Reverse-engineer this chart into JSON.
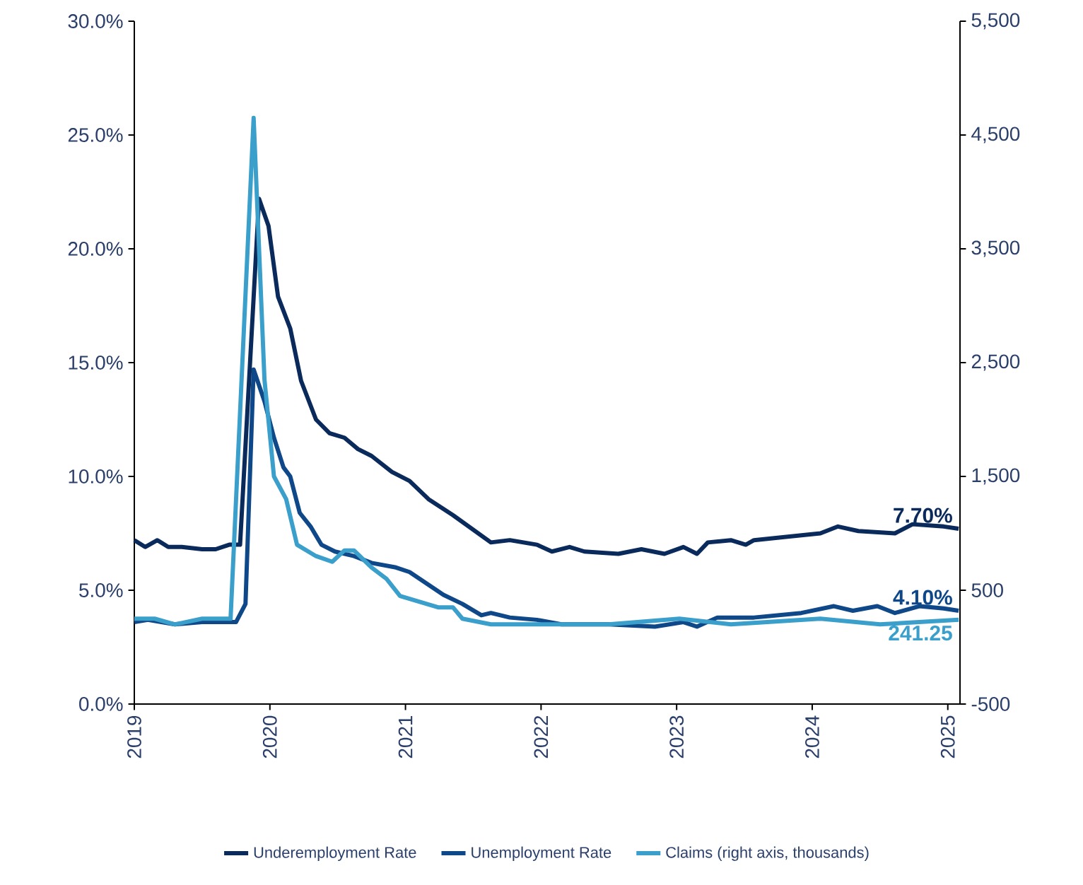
{
  "chart_data": {
    "type": "line",
    "xlim": [
      2019,
      2025.09
    ],
    "xticks": [
      2019,
      2020,
      2021,
      2022,
      2023,
      2024,
      2025
    ],
    "ylim": [
      0,
      30
    ],
    "yticks": [
      {
        "value": 0,
        "label": "0.0%"
      },
      {
        "value": 5,
        "label": "5.0%"
      },
      {
        "value": 10,
        "label": "10.0%"
      },
      {
        "value": 15,
        "label": "15.0%"
      },
      {
        "value": 20,
        "label": "20.0%"
      },
      {
        "value": 25,
        "label": "25.0%"
      },
      {
        "value": 30,
        "label": "30.0%"
      }
    ],
    "y2lim": [
      -500,
      5500
    ],
    "y2ticks": [
      {
        "value": -500,
        "label": "-500"
      },
      {
        "value": 500,
        "label": "500"
      },
      {
        "value": 1500,
        "label": "1,500"
      },
      {
        "value": 2500,
        "label": "2,500"
      },
      {
        "value": 3500,
        "label": "3,500"
      },
      {
        "value": 4500,
        "label": "4,500"
      },
      {
        "value": 5500,
        "label": "5,500"
      }
    ],
    "legend": "bottom",
    "line_style": "solid",
    "series": [
      {
        "name": "Underemployment Rate",
        "color": "#0b2a5c",
        "x": [
          2019.0,
          2019.08,
          2019.17,
          2019.25,
          2019.35,
          2019.5,
          2019.6,
          2019.7,
          2019.78,
          2019.92,
          2019.99,
          2020.06,
          2020.15,
          2020.23,
          2020.34,
          2020.44,
          2020.55,
          2020.65,
          2020.75,
          2020.9,
          2021.03,
          2021.17,
          2021.35,
          2021.63,
          2021.77,
          2021.97,
          2022.08,
          2022.21,
          2022.32,
          2022.57,
          2022.74,
          2022.91,
          2023.05,
          2023.15,
          2023.23,
          2023.4,
          2023.51,
          2023.57,
          2024.06,
          2024.19,
          2024.34,
          2024.61,
          2024.74,
          2024.97,
          2025.08
        ],
        "values": [
          7.2,
          6.9,
          7.2,
          6.9,
          6.9,
          6.8,
          6.8,
          7.0,
          7.0,
          22.2,
          21.0,
          17.9,
          16.5,
          14.2,
          12.5,
          11.9,
          11.7,
          11.2,
          10.9,
          10.2,
          9.8,
          9.0,
          8.3,
          7.1,
          7.2,
          7.0,
          6.7,
          6.9,
          6.7,
          6.6,
          6.8,
          6.6,
          6.9,
          6.6,
          7.1,
          7.2,
          7.0,
          7.2,
          7.5,
          7.8,
          7.6,
          7.5,
          7.9,
          7.8,
          7.7
        ],
        "value_labels": [
          null,
          null,
          null,
          null,
          null,
          null,
          null,
          null,
          null,
          null,
          null,
          null,
          null,
          null,
          null,
          null,
          null,
          null,
          null,
          null,
          null,
          null,
          null,
          null,
          null,
          null,
          null,
          null,
          null,
          null,
          null,
          null,
          null,
          null,
          null,
          null,
          null,
          null,
          null,
          null,
          null,
          null,
          null,
          null,
          "7.70%"
        ]
      },
      {
        "name": "Unemployment Rate",
        "color": "#0f4888",
        "x": [
          2019.0,
          2019.1,
          2019.3,
          2019.5,
          2019.65,
          2019.75,
          2019.82,
          2019.88,
          2019.96,
          2020.03,
          2020.1,
          2020.15,
          2020.22,
          2020.3,
          2020.38,
          2020.48,
          2020.62,
          2020.75,
          2020.93,
          2021.03,
          2021.28,
          2021.42,
          2021.56,
          2021.63,
          2021.77,
          2021.97,
          2022.15,
          2022.5,
          2022.84,
          2023.05,
          2023.15,
          2023.3,
          2023.57,
          2023.92,
          2024.16,
          2024.3,
          2024.48,
          2024.61,
          2024.79,
          2024.97,
          2025.08
        ],
        "values": [
          3.6,
          3.7,
          3.5,
          3.6,
          3.6,
          3.6,
          4.4,
          14.7,
          13.3,
          11.7,
          10.4,
          10.0,
          8.4,
          7.8,
          7.0,
          6.7,
          6.5,
          6.2,
          6.0,
          5.8,
          4.8,
          4.4,
          3.9,
          4.0,
          3.8,
          3.7,
          3.5,
          3.5,
          3.4,
          3.6,
          3.4,
          3.8,
          3.8,
          4.0,
          4.3,
          4.1,
          4.3,
          4.0,
          4.3,
          4.2,
          4.1
        ],
        "value_labels": [
          null,
          null,
          null,
          null,
          null,
          null,
          null,
          null,
          null,
          null,
          null,
          null,
          null,
          null,
          null,
          null,
          null,
          null,
          null,
          null,
          null,
          null,
          null,
          null,
          null,
          null,
          null,
          null,
          null,
          null,
          null,
          null,
          null,
          null,
          null,
          null,
          null,
          null,
          null,
          null,
          "4.10%"
        ]
      },
      {
        "name": "Claims (right axis, thousands)",
        "color": "#3a9fcb",
        "axis": "y2",
        "x": [
          2019.0,
          2019.15,
          2019.3,
          2019.5,
          2019.62,
          2019.71,
          2019.88,
          2019.96,
          2020.03,
          2020.12,
          2020.2,
          2020.34,
          2020.46,
          2020.55,
          2020.62,
          2020.75,
          2020.86,
          2020.96,
          2021.1,
          2021.24,
          2021.35,
          2021.42,
          2021.63,
          2021.97,
          2022.5,
          2023.02,
          2023.4,
          2024.06,
          2024.5,
          2025.08
        ],
        "values": [
          250,
          250,
          200,
          250,
          250,
          250,
          4650,
          2350,
          1500,
          1300,
          900,
          800,
          750,
          850,
          850,
          700,
          600,
          450,
          400,
          350,
          350,
          250,
          200,
          200,
          200,
          250,
          200,
          250,
          200,
          241.25
        ],
        "value_labels": [
          null,
          null,
          null,
          null,
          null,
          null,
          null,
          null,
          null,
          null,
          null,
          null,
          null,
          null,
          null,
          null,
          null,
          null,
          null,
          null,
          null,
          null,
          null,
          null,
          null,
          null,
          null,
          null,
          null,
          "241.25"
        ]
      }
    ]
  }
}
